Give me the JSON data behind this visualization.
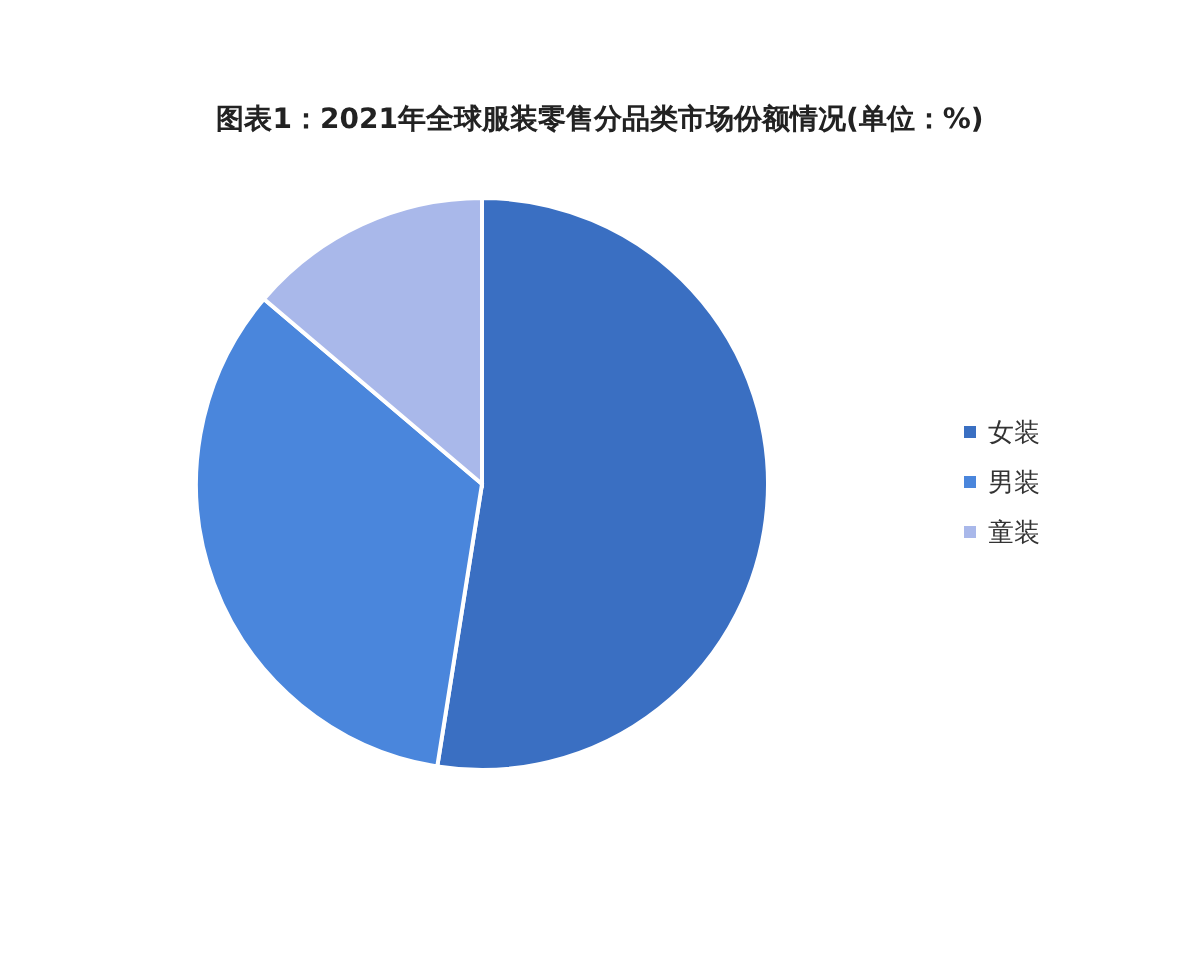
{
  "chart_data": {
    "type": "pie",
    "title": "图表1：2021年全球服装零售分品类市场份额情况(单位：%)",
    "categories": [
      "女装",
      "男装",
      "童装"
    ],
    "values": [
      52.5,
      33.7,
      13.8
    ],
    "colors": [
      "#3a6fc2",
      "#4a86dc",
      "#a9b8ea"
    ],
    "legend": "right"
  }
}
